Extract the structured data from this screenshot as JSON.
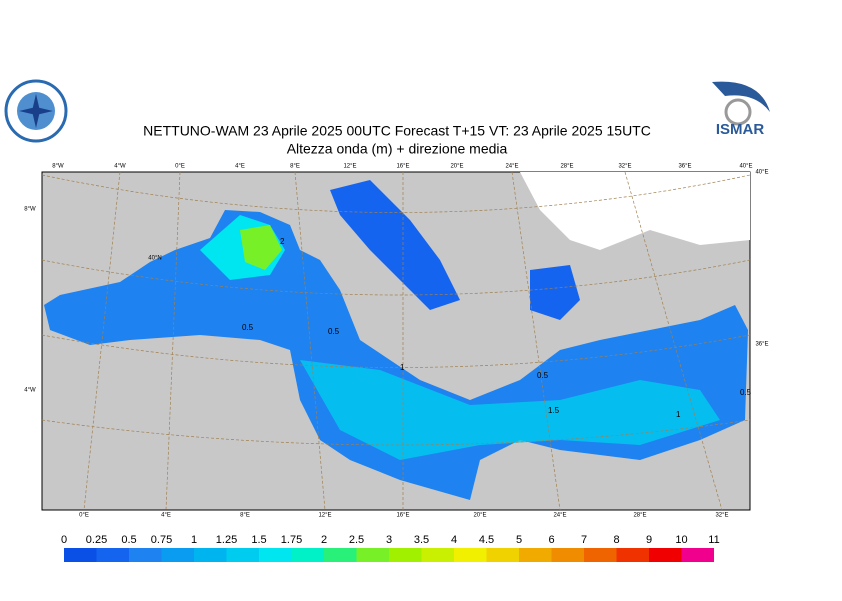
{
  "header": {
    "title": "NETTUNO-WAM  23   Aprile  2025 00UTC Forecast T+15 VT: 23   Aprile  2025 15UTC",
    "subtitle": "Altezza onda (m) + direzione media",
    "logo_right": "ISMAR"
  },
  "map": {
    "top_labels": [
      "8°W",
      "4°W",
      "0°E",
      "4°E",
      "8°E",
      "12°E",
      "16°E",
      "20°E",
      "24°E",
      "28°E",
      "32°E",
      "36°E",
      "40°E"
    ],
    "bottom_labels": [
      "0°E",
      "4°E",
      "8°E",
      "12°E",
      "16°E",
      "20°E",
      "24°E",
      "28°E",
      "32°E"
    ],
    "left_labels": [
      "8°W",
      "4°W"
    ],
    "right_labels": [
      "40°E",
      "36°E"
    ],
    "lat_label": "40°N",
    "contour_labels": [
      "2",
      "0.5",
      "0.5",
      "1",
      "0.5",
      "1.5",
      "1",
      "0.5"
    ]
  },
  "colorbar": {
    "levels": [
      0,
      0.25,
      0.5,
      0.75,
      1,
      1.25,
      1.5,
      1.75,
      2,
      2.5,
      3,
      3.5,
      4,
      4.5,
      5,
      6,
      7,
      8,
      9,
      10,
      11
    ],
    "colors": [
      "#0a50e6",
      "#1464f0",
      "#1e82f0",
      "#0a9cf0",
      "#00b4f0",
      "#00ccf0",
      "#00e6f0",
      "#00f0c8",
      "#28f078",
      "#78f028",
      "#a0f000",
      "#c8f000",
      "#f0f000",
      "#f0d200",
      "#f0aa00",
      "#f08c00",
      "#f06400",
      "#f03200",
      "#f00000",
      "#f0008c"
    ]
  }
}
